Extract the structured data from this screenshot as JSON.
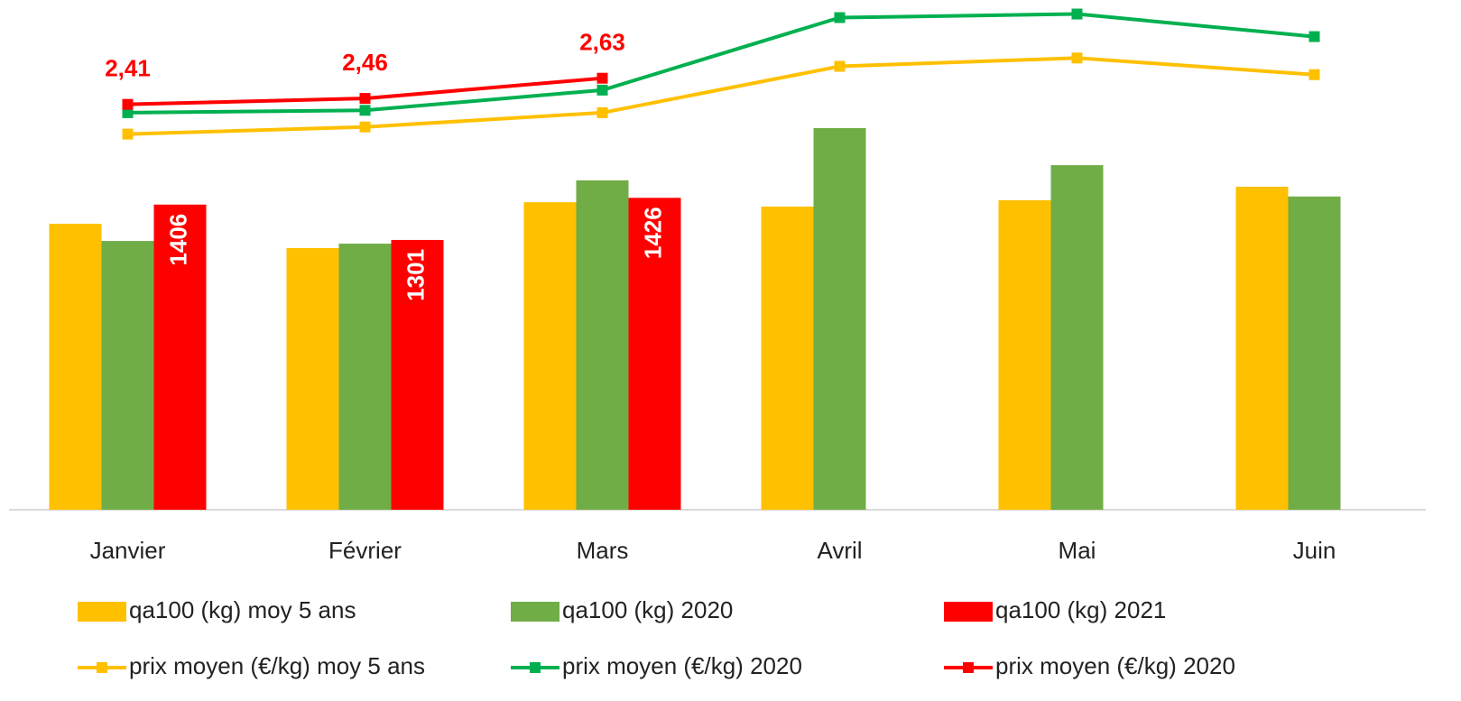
{
  "chart_data": {
    "type": "bar-line",
    "categories": [
      "Janvier",
      "Février",
      "Mars",
      "Avril",
      "Mai",
      "Juin"
    ],
    "ylim": [
      500,
      2000
    ],
    "y2lim": [
      -1,
      3.25
    ],
    "series": [
      {
        "name": "qa100 (kg) moy 5 ans",
        "type": "bar",
        "color": "#ffc000",
        "values": [
          1349,
          1277,
          1413,
          1400,
          1419,
          1459
        ]
      },
      {
        "name": "qa100 (kg) 2020",
        "type": "bar",
        "color": "#70ad47",
        "values": [
          1298,
          1290,
          1478,
          1633,
          1523,
          1430
        ]
      },
      {
        "name": "qa100 (kg) 2021",
        "type": "bar",
        "color": "#ff0000",
        "values": [
          1406,
          1301,
          1426,
          null,
          null,
          null
        ],
        "labels": true
      },
      {
        "name": "prix moyen (€/kg) moy 5 ans",
        "type": "line",
        "axis": "y2",
        "color": "#ffc000",
        "values": [
          2.16,
          2.22,
          2.34,
          2.73,
          2.8,
          2.66
        ]
      },
      {
        "name": "prix moyen (€/kg) 2020",
        "type": "line",
        "axis": "y2",
        "color": "#00b050",
        "values": [
          2.34,
          2.36,
          2.53,
          3.14,
          3.17,
          2.98
        ]
      },
      {
        "name": "prix moyen (€/kg) 2020",
        "type": "line",
        "axis": "y2",
        "color": "#ff0000",
        "values": [
          2.41,
          2.46,
          2.63,
          null,
          null,
          null
        ],
        "value_labels": [
          "2,41",
          "2,46",
          "2,63",
          null,
          null,
          null
        ]
      }
    ]
  }
}
